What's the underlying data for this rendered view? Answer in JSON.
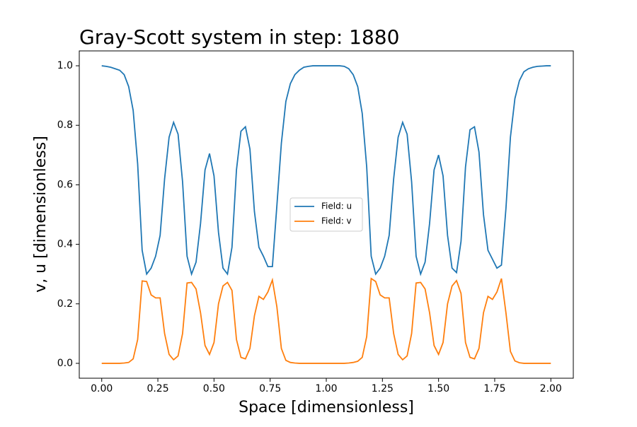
{
  "chart_data": {
    "type": "line",
    "title": "Gray-Scott system in step: 1880",
    "x_label": "Space [dimensionless]",
    "y_label": "v, u [dimensionless]",
    "x": [
      0,
      0.02,
      0.04,
      0.06,
      0.08,
      0.1,
      0.12,
      0.14,
      0.16,
      0.18,
      0.2,
      0.22,
      0.24,
      0.26,
      0.28,
      0.3,
      0.32,
      0.34,
      0.36,
      0.38,
      0.4,
      0.42,
      0.44,
      0.46,
      0.48,
      0.5,
      0.52,
      0.54,
      0.56,
      0.58,
      0.6,
      0.62,
      0.64,
      0.66,
      0.68,
      0.7,
      0.72,
      0.74,
      0.76,
      0.78,
      0.8,
      0.82,
      0.84,
      0.86,
      0.88,
      0.9,
      0.92,
      0.94,
      0.96,
      0.98,
      1,
      1.02,
      1.04,
      1.06,
      1.08,
      1.1,
      1.12,
      1.14,
      1.16,
      1.18,
      1.2,
      1.22,
      1.24,
      1.26,
      1.28,
      1.3,
      1.32,
      1.34,
      1.36,
      1.38,
      1.4,
      1.42,
      1.44,
      1.46,
      1.48,
      1.5,
      1.52,
      1.54,
      1.56,
      1.58,
      1.6,
      1.62,
      1.64,
      1.66,
      1.68,
      1.7,
      1.72,
      1.74,
      1.76,
      1.78,
      1.8,
      1.82,
      1.84,
      1.86,
      1.88,
      1.9,
      1.92,
      1.94,
      1.96,
      1.98,
      2
    ],
    "series": [
      {
        "name": "Field: u",
        "color": "#1f77b4",
        "values": [
          1.0,
          0.998,
          0.995,
          0.99,
          0.985,
          0.97,
          0.93,
          0.85,
          0.67,
          0.38,
          0.3,
          0.32,
          0.36,
          0.43,
          0.62,
          0.76,
          0.81,
          0.77,
          0.61,
          0.36,
          0.3,
          0.34,
          0.47,
          0.65,
          0.705,
          0.63,
          0.44,
          0.32,
          0.3,
          0.39,
          0.65,
          0.78,
          0.795,
          0.72,
          0.51,
          0.39,
          0.36,
          0.325,
          0.325,
          0.53,
          0.74,
          0.88,
          0.94,
          0.97,
          0.985,
          0.995,
          0.998,
          1.0,
          1.0,
          1.0,
          1.0,
          1.0,
          1.0,
          1.0,
          0.998,
          0.99,
          0.97,
          0.93,
          0.84,
          0.66,
          0.36,
          0.3,
          0.32,
          0.36,
          0.43,
          0.62,
          0.76,
          0.81,
          0.77,
          0.61,
          0.36,
          0.3,
          0.34,
          0.47,
          0.65,
          0.7,
          0.63,
          0.43,
          0.32,
          0.305,
          0.41,
          0.66,
          0.785,
          0.795,
          0.71,
          0.5,
          0.38,
          0.35,
          0.32,
          0.33,
          0.52,
          0.76,
          0.89,
          0.95,
          0.98,
          0.99,
          0.995,
          0.998,
          0.999,
          1.0,
          1.0
        ]
      },
      {
        "name": "Field: v",
        "color": "#ff7f0e",
        "values": [
          0,
          0,
          0,
          0,
          0,
          0.001,
          0.003,
          0.015,
          0.08,
          0.277,
          0.275,
          0.23,
          0.22,
          0.22,
          0.1,
          0.03,
          0.012,
          0.025,
          0.1,
          0.27,
          0.272,
          0.25,
          0.17,
          0.06,
          0.03,
          0.07,
          0.2,
          0.26,
          0.272,
          0.245,
          0.08,
          0.02,
          0.015,
          0.05,
          0.16,
          0.225,
          0.215,
          0.24,
          0.28,
          0.19,
          0.05,
          0.01,
          0.003,
          0.001,
          0,
          0,
          0,
          0,
          0,
          0,
          0,
          0,
          0,
          0,
          0,
          0.001,
          0.003,
          0.007,
          0.02,
          0.09,
          0.285,
          0.275,
          0.23,
          0.22,
          0.22,
          0.1,
          0.03,
          0.012,
          0.025,
          0.1,
          0.27,
          0.272,
          0.25,
          0.17,
          0.06,
          0.03,
          0.07,
          0.2,
          0.26,
          0.278,
          0.235,
          0.07,
          0.02,
          0.015,
          0.05,
          0.17,
          0.225,
          0.215,
          0.24,
          0.285,
          0.17,
          0.04,
          0.008,
          0.002,
          0,
          0,
          0,
          0,
          0,
          0,
          0
        ]
      }
    ],
    "xlim": [
      -0.1,
      2.1
    ],
    "ylim": [
      -0.05,
      1.05
    ],
    "xticks": [
      {
        "value": 0,
        "label": "0.00"
      },
      0.25,
      {
        "value": 0.5,
        "label": "0.50"
      },
      0.75,
      {
        "value": 1,
        "label": "1.00"
      },
      1.25,
      {
        "value": 1.5,
        "label": "1.50"
      },
      1.75,
      {
        "value": 2,
        "label": "2.00"
      }
    ],
    "yticks": [
      {
        "value": 0,
        "label": "0.0"
      },
      0.2,
      0.4,
      0.6,
      0.8,
      {
        "value": 1,
        "label": "1.0"
      }
    ],
    "legend": "center"
  }
}
